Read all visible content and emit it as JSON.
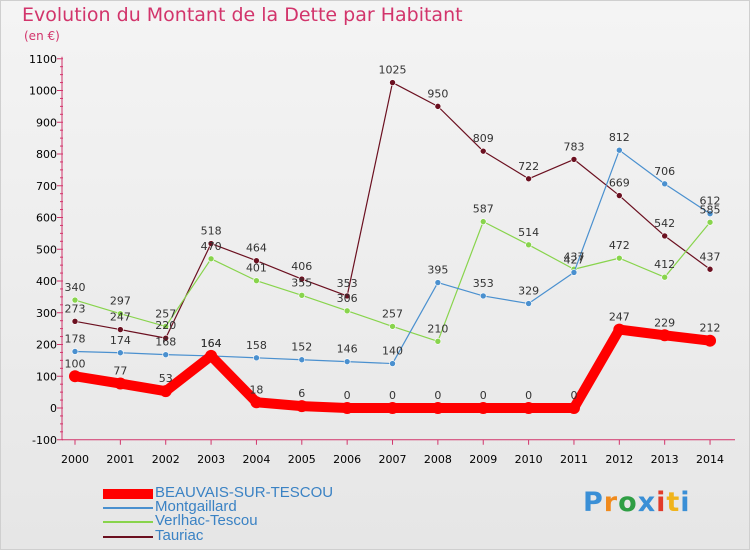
{
  "chart_data": {
    "type": "line",
    "title": "Evolution du Montant de la Dette par Habitant",
    "subtitle": "(en €)",
    "categories": [
      "2000",
      "2001",
      "2002",
      "2003",
      "2004",
      "2005",
      "2006",
      "2007",
      "2008",
      "2009",
      "2010",
      "2011",
      "2012",
      "2013",
      "2014"
    ],
    "ylim": [
      -100,
      1100
    ],
    "yticks": [
      "-100",
      "0",
      "100",
      "200",
      "300",
      "400",
      "500",
      "600",
      "700",
      "800",
      "900",
      "1000",
      "1100"
    ],
    "grid": false,
    "legend_position": "bottom-left",
    "series": [
      {
        "name": "BEAUVAIS-SUR-TESCOU",
        "color": "#ff0000",
        "values": [
          100,
          77,
          53,
          164,
          18,
          6,
          0,
          0,
          0,
          0,
          0,
          0,
          247,
          229,
          212
        ]
      },
      {
        "name": "Montgaillard",
        "color": "#4a90cf",
        "values": [
          178,
          174,
          168,
          164,
          158,
          152,
          146,
          140,
          395,
          353,
          329,
          427,
          812,
          706,
          612
        ]
      },
      {
        "name": "Verlhac-Tescou",
        "color": "#88d44c",
        "values": [
          340,
          297,
          257,
          470,
          401,
          355,
          306,
          257,
          210,
          587,
          514,
          437,
          472,
          412,
          585
        ]
      },
      {
        "name": "Tauriac",
        "color": "#6b1020",
        "values": [
          273,
          247,
          220,
          518,
          464,
          406,
          353,
          1025,
          950,
          809,
          722,
          783,
          669,
          542,
          437
        ]
      }
    ]
  },
  "logo": {
    "text": "Proxiti",
    "letters": [
      "P",
      "r",
      "o",
      "x",
      "i",
      "t",
      "i"
    ],
    "colors": [
      "#3a8fd6",
      "#f08a1c",
      "#2f9e44",
      "#3a8fd6",
      "#e23b2a",
      "#f0b41c",
      "#3a8fd6"
    ]
  }
}
